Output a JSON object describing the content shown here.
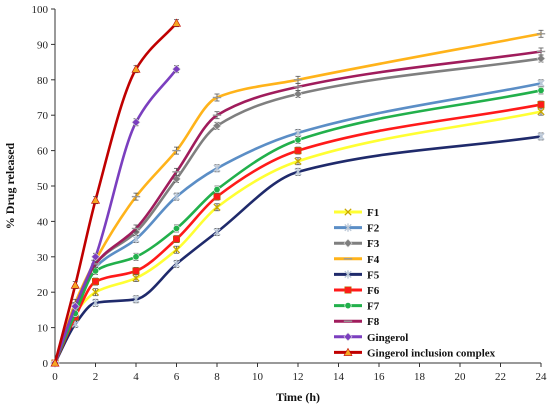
{
  "chart_data": {
    "type": "line",
    "title": "",
    "xlabel": "Time (h)",
    "ylabel": "% Drug released",
    "xlim": [
      0,
      24
    ],
    "ylim": [
      0,
      100
    ],
    "x_ticks": [
      0,
      2,
      4,
      6,
      8,
      10,
      12,
      14,
      16,
      18,
      20,
      22,
      24
    ],
    "y_ticks": [
      0,
      10,
      20,
      30,
      40,
      50,
      60,
      70,
      80,
      90,
      100
    ],
    "grid": false,
    "legend_position": "center-right",
    "series": [
      {
        "name": "F1",
        "color": "#ffff33",
        "marker": "x",
        "x": [
          0,
          1,
          2,
          4,
          6,
          8,
          12,
          24
        ],
        "y": [
          0,
          14,
          20,
          24,
          32,
          44,
          57,
          71
        ]
      },
      {
        "name": "F2",
        "color": "#5b8ec6",
        "marker": "star",
        "x": [
          0,
          1,
          2,
          4,
          6,
          8,
          12,
          24
        ],
        "y": [
          0,
          16,
          27,
          35,
          47,
          55,
          65,
          79
        ]
      },
      {
        "name": "F3",
        "color": "#7f7f7f",
        "marker": "diamond",
        "x": [
          0,
          1,
          2,
          4,
          6,
          8,
          12,
          24
        ],
        "y": [
          0,
          15,
          28,
          37,
          52,
          67,
          76,
          86
        ]
      },
      {
        "name": "F4",
        "color": "#ffb31a",
        "marker": "dash",
        "x": [
          0,
          1,
          2,
          4,
          6,
          8,
          12,
          24
        ],
        "y": [
          0,
          17,
          29,
          47,
          60,
          75,
          80,
          93
        ]
      },
      {
        "name": "F5",
        "color": "#1f2a6b",
        "marker": "star",
        "x": [
          0,
          1,
          2,
          4,
          6,
          8,
          12,
          24
        ],
        "y": [
          0,
          11,
          17,
          18,
          28,
          37,
          54,
          64
        ]
      },
      {
        "name": "F6",
        "color": "#ff1a1a",
        "marker": "square",
        "x": [
          0,
          1,
          2,
          4,
          6,
          8,
          12,
          24
        ],
        "y": [
          0,
          13,
          23,
          26,
          35,
          47,
          60,
          73
        ]
      },
      {
        "name": "F7",
        "color": "#22b04b",
        "marker": "circle",
        "x": [
          0,
          1,
          2,
          4,
          6,
          8,
          12,
          24
        ],
        "y": [
          0,
          14,
          26,
          30,
          38,
          49,
          63,
          77
        ]
      },
      {
        "name": "F8",
        "color": "#a01c5c",
        "marker": "dash",
        "x": [
          0,
          1,
          2,
          4,
          6,
          8,
          12,
          24
        ],
        "y": [
          0,
          16,
          28,
          38,
          54,
          70,
          78,
          88
        ]
      },
      {
        "name": "Gingerol",
        "color": "#7b3fbf",
        "marker": "diamond",
        "x": [
          0,
          1,
          2,
          4,
          6
        ],
        "y": [
          0,
          16,
          30,
          68,
          83
        ]
      },
      {
        "name": "Gingerol inclusion complex",
        "color": "#c00000",
        "marker": "triangle",
        "x": [
          0,
          1,
          2,
          4,
          6
        ],
        "y": [
          0,
          22,
          46,
          83,
          96
        ]
      }
    ]
  }
}
